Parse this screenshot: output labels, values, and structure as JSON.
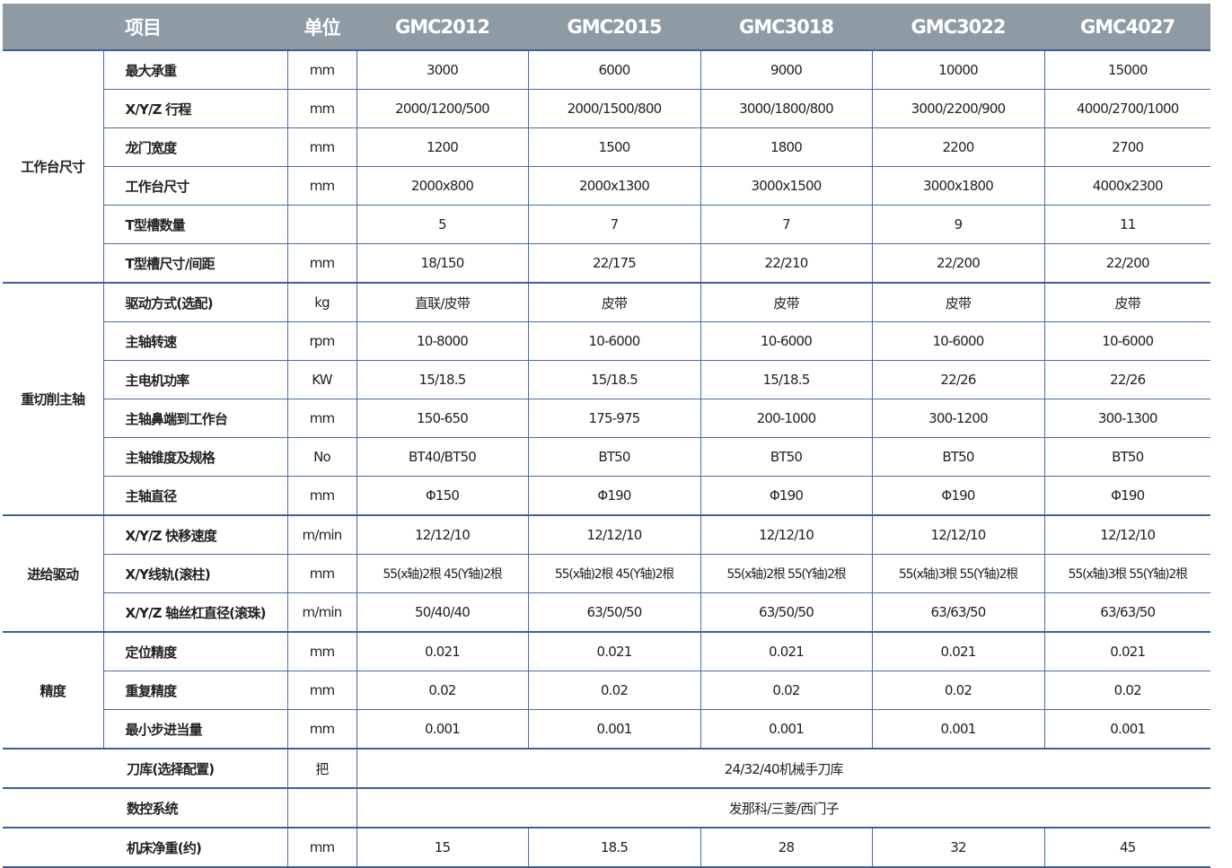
{
  "header": {
    "item": "项目",
    "unit": "单位",
    "models": [
      "GMC2012",
      "GMC2015",
      "GMC3018",
      "GMC3022",
      "GMC4027"
    ]
  },
  "colors": {
    "header_bg": "#8e9ba5",
    "grid_line": "#4a6aa5"
  },
  "groups": [
    {
      "name": "工作台尺寸",
      "rows": [
        {
          "item": "最大承重",
          "unit": "mm",
          "values": [
            "3000",
            "6000",
            "9000",
            "10000",
            "15000"
          ]
        },
        {
          "item": "X/Y/Z 行程",
          "unit": "mm",
          "values": [
            "2000/1200/500",
            "2000/1500/800",
            "3000/1800/800",
            "3000/2200/900",
            "4000/2700/1000"
          ]
        },
        {
          "item": "龙门宽度",
          "unit": "mm",
          "values": [
            "1200",
            "1500",
            "1800",
            "2200",
            "2700"
          ]
        },
        {
          "item": "工作台尺寸",
          "unit": "mm",
          "values": [
            "2000x800",
            "2000x1300",
            "3000x1500",
            "3000x1800",
            "4000x2300"
          ]
        },
        {
          "item": "T型槽数量",
          "unit": "",
          "values": [
            "5",
            "7",
            "7",
            "9",
            "11"
          ]
        },
        {
          "item": "T型槽尺寸/间距",
          "unit": "mm",
          "values": [
            "18/150",
            "22/175",
            "22/210",
            "22/200",
            "22/200"
          ]
        }
      ]
    },
    {
      "name": "重切削主轴",
      "rows": [
        {
          "item": "驱动方式(选配)",
          "unit": "kg",
          "values": [
            "直联/皮带",
            "皮带",
            "皮带",
            "皮带",
            "皮带"
          ]
        },
        {
          "item": "主轴转速",
          "unit": "rpm",
          "values": [
            "10-8000",
            "10-6000",
            "10-6000",
            "10-6000",
            "10-6000"
          ]
        },
        {
          "item": "主电机功率",
          "unit": "KW",
          "values": [
            "15/18.5",
            "15/18.5",
            "15/18.5",
            "22/26",
            "22/26"
          ]
        },
        {
          "item": "主轴鼻端到工作台",
          "unit": "mm",
          "values": [
            "150-650",
            "175-975",
            "200-1000",
            "300-1200",
            "300-1300"
          ]
        },
        {
          "item": "主轴锥度及规格",
          "unit": "No",
          "values": [
            "BT40/BT50",
            "BT50",
            "BT50",
            "BT50",
            "BT50"
          ]
        },
        {
          "item": "主轴直径",
          "unit": "mm",
          "values": [
            "Φ150",
            "Φ190",
            "Φ190",
            "Φ190",
            "Φ190"
          ]
        }
      ]
    },
    {
      "name": "进给驱动",
      "rows": [
        {
          "item": "X/Y/Z 快移速度",
          "unit": "m/min",
          "values": [
            "12/12/10",
            "12/12/10",
            "12/12/10",
            "12/12/10",
            "12/12/10"
          ]
        },
        {
          "item": "X/Y线轨(滚柱)",
          "unit": "mm",
          "values": [
            "55(x轴)2根 45(Y轴)2根",
            "55(x轴)2根 45(Y轴)2根",
            "55(x轴)2根 55(Y轴)2根",
            "55(x轴)3根 55(Y轴)2根",
            "55(x轴)3根 55(Y轴)2根"
          ]
        },
        {
          "item": "X/Y/Z 轴丝杠直径(滚珠)",
          "unit": "m/min",
          "values": [
            "50/40/40",
            "63/50/50",
            "63/50/50",
            "63/63/50",
            "63/63/50"
          ]
        }
      ]
    },
    {
      "name": "精度",
      "rows": [
        {
          "item": "定位精度",
          "unit": "mm",
          "values": [
            "0.021",
            "0.021",
            "0.021",
            "0.021",
            "0.021"
          ]
        },
        {
          "item": "重复精度",
          "unit": "mm",
          "values": [
            "0.02",
            "0.02",
            "0.02",
            "0.02",
            "0.02"
          ]
        },
        {
          "item": "最小步进当量",
          "unit": "mm",
          "values": [
            "0.001",
            "0.001",
            "0.001",
            "0.001",
            "0.001"
          ]
        }
      ]
    }
  ],
  "extra_rows": [
    {
      "item": "刀库(选择配置)",
      "unit": "把",
      "merged": "24/32/40机械手刀库"
    },
    {
      "item": "数控系统",
      "unit": "",
      "merged": "发那科/三菱/西门子"
    },
    {
      "item": "机床净重(约)",
      "unit": "mm",
      "values": [
        "15",
        "18.5",
        "28",
        "32",
        "45"
      ]
    }
  ]
}
